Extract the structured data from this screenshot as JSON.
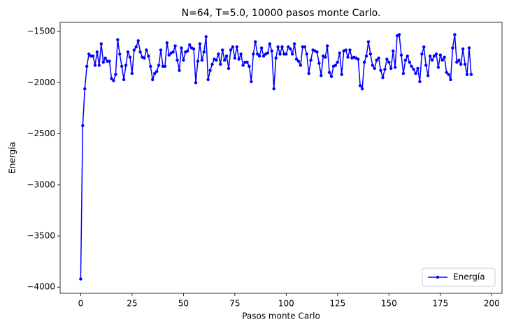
{
  "chart_data": {
    "type": "line",
    "title": "N=64, T=5.0, 10000 pasos monte Carlo.",
    "xlabel": "Pasos monte Carlo",
    "ylabel": "Energía",
    "xlim": [
      -10,
      205
    ],
    "ylim": [
      -4060,
      -1410
    ],
    "xticks": [
      0,
      25,
      50,
      75,
      100,
      125,
      150,
      175,
      200
    ],
    "yticks": [
      {
        "value": -4000,
        "label": "−4000"
      },
      {
        "value": -3500,
        "label": "−3500"
      },
      {
        "value": -3000,
        "label": "−3000"
      },
      {
        "value": -2500,
        "label": "−2500"
      },
      {
        "value": -2000,
        "label": "−2000"
      },
      {
        "value": -1500,
        "label": "−1500"
      }
    ],
    "legend": "lower right",
    "x": [
      0,
      1,
      2,
      3,
      4,
      5,
      6,
      7,
      8,
      9,
      10,
      11,
      12,
      13,
      14,
      15,
      16,
      17,
      18,
      19,
      20,
      21,
      22,
      23,
      24,
      25,
      26,
      27,
      28,
      29,
      30,
      31,
      32,
      33,
      34,
      35,
      36,
      37,
      38,
      39,
      40,
      41,
      42,
      43,
      44,
      45,
      46,
      47,
      48,
      49,
      50,
      51,
      52,
      53,
      54,
      55,
      56,
      57,
      58,
      59,
      60,
      61,
      62,
      63,
      64,
      65,
      66,
      67,
      68,
      69,
      70,
      71,
      72,
      73,
      74,
      75,
      76,
      77,
      78,
      79,
      80,
      81,
      82,
      83,
      84,
      85,
      86,
      87,
      88,
      89,
      90,
      91,
      92,
      93,
      94,
      95,
      96,
      97,
      98,
      99,
      100,
      101,
      102,
      103,
      104,
      105,
      106,
      107,
      108,
      109,
      110,
      111,
      112,
      113,
      114,
      115,
      116,
      117,
      118,
      119,
      120,
      121,
      122,
      123,
      124,
      125,
      126,
      127,
      128,
      129,
      130,
      131,
      132,
      133,
      134,
      135,
      136,
      137,
      138,
      139,
      140,
      141,
      142,
      143,
      144,
      145,
      146,
      147,
      148,
      149,
      150,
      151,
      152,
      153,
      154,
      155,
      156,
      157,
      158,
      159,
      160,
      161,
      162,
      163,
      164,
      165,
      166,
      167,
      168,
      169,
      170,
      171,
      172,
      173,
      174,
      175,
      176,
      177,
      178,
      179,
      180,
      181,
      182,
      183,
      184,
      185,
      186,
      187,
      188,
      189,
      190
    ],
    "series": [
      {
        "name": "Energía",
        "color": "#0000ff",
        "values": [
          -3920,
          -2420,
          -2060,
          -1840,
          -1720,
          -1740,
          -1740,
          -1830,
          -1700,
          -1830,
          -1620,
          -1800,
          -1760,
          -1790,
          -1790,
          -1960,
          -1980,
          -1920,
          -1580,
          -1720,
          -1840,
          -1970,
          -1830,
          -1700,
          -1750,
          -1910,
          -1680,
          -1650,
          -1590,
          -1700,
          -1750,
          -1760,
          -1680,
          -1740,
          -1840,
          -1970,
          -1910,
          -1890,
          -1830,
          -1680,
          -1840,
          -1840,
          -1610,
          -1730,
          -1710,
          -1700,
          -1640,
          -1780,
          -1880,
          -1660,
          -1780,
          -1700,
          -1690,
          -1630,
          -1660,
          -1670,
          -2000,
          -1790,
          -1620,
          -1780,
          -1700,
          -1550,
          -1970,
          -1880,
          -1820,
          -1770,
          -1780,
          -1720,
          -1820,
          -1680,
          -1780,
          -1740,
          -1860,
          -1680,
          -1650,
          -1760,
          -1650,
          -1770,
          -1720,
          -1830,
          -1800,
          -1800,
          -1840,
          -1990,
          -1720,
          -1600,
          -1720,
          -1740,
          -1660,
          -1740,
          -1720,
          -1710,
          -1620,
          -1690,
          -2060,
          -1760,
          -1650,
          -1720,
          -1650,
          -1720,
          -1720,
          -1650,
          -1670,
          -1720,
          -1620,
          -1770,
          -1790,
          -1830,
          -1650,
          -1650,
          -1720,
          -1910,
          -1780,
          -1680,
          -1690,
          -1700,
          -1810,
          -1930,
          -1740,
          -1750,
          -1640,
          -1900,
          -1940,
          -1840,
          -1830,
          -1800,
          -1710,
          -1920,
          -1690,
          -1680,
          -1750,
          -1680,
          -1760,
          -1750,
          -1760,
          -1770,
          -2030,
          -2060,
          -1800,
          -1740,
          -1600,
          -1720,
          -1830,
          -1860,
          -1780,
          -1760,
          -1880,
          -1950,
          -1870,
          -1770,
          -1800,
          -1860,
          -1690,
          -1850,
          -1540,
          -1530,
          -1730,
          -1910,
          -1780,
          -1740,
          -1800,
          -1840,
          -1870,
          -1910,
          -1860,
          -1990,
          -1720,
          -1650,
          -1830,
          -1930,
          -1740,
          -1780,
          -1740,
          -1720,
          -1850,
          -1730,
          -1780,
          -1750,
          -1900,
          -1920,
          -1970,
          -1660,
          -1530,
          -1800,
          -1780,
          -1820,
          -1670,
          -1820,
          -1920,
          -1660,
          -1920
        ]
      }
    ]
  }
}
